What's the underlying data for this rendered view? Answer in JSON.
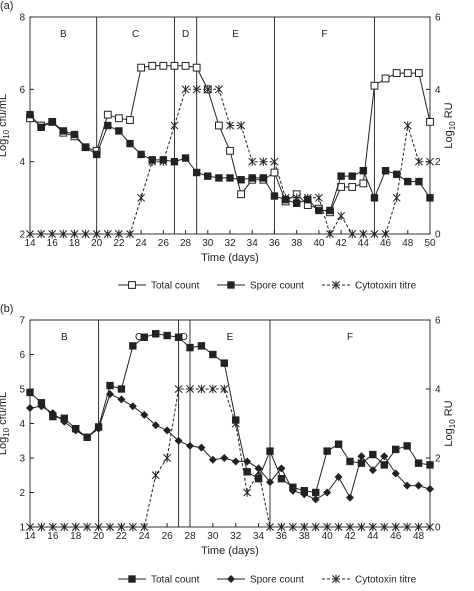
{
  "chart_data": [
    {
      "type": "line",
      "panel_label": "(a)",
      "xlabel": "Time (days)",
      "ylabel": "Log10 cfu/mL",
      "ylabel_main": "Log",
      "ylabel_sub": "10",
      "ylabel_rest": " cfu/mL",
      "y2label": "Log10 RU",
      "y2label_main": "Log",
      "y2label_sub": "10",
      "y2label_rest": " RU",
      "xlim": [
        14,
        50
      ],
      "ylim": [
        2,
        8
      ],
      "y2lim": [
        0,
        6
      ],
      "xticks": [
        14,
        16,
        18,
        20,
        22,
        24,
        26,
        28,
        30,
        32,
        34,
        36,
        38,
        40,
        42,
        44,
        46,
        48,
        50
      ],
      "yticks": [
        2,
        4,
        6,
        8
      ],
      "y2ticks": [
        0,
        2,
        4,
        6
      ],
      "phase_lines": [
        20,
        27,
        29,
        36,
        45
      ],
      "phases": [
        {
          "label": "B",
          "x": 17
        },
        {
          "label": "C",
          "x": 23.5
        },
        {
          "label": "D",
          "x": 28
        },
        {
          "label": "E",
          "x": 32.5
        },
        {
          "label": "F",
          "x": 40.5
        }
      ],
      "series": [
        {
          "name": "Total count",
          "marker": "open-square",
          "line": "solid",
          "axis": "left",
          "x": [
            14,
            15,
            16,
            17,
            18,
            19,
            20,
            21,
            22,
            23,
            24,
            25,
            26,
            27,
            28,
            29,
            30,
            31,
            32,
            33,
            34,
            35,
            36,
            37,
            38,
            39,
            40,
            41,
            42,
            43,
            44,
            45,
            46,
            47,
            48,
            49,
            50
          ],
          "y": [
            5.2,
            5.0,
            5.1,
            4.8,
            4.7,
            4.4,
            4.3,
            5.3,
            5.2,
            5.15,
            6.6,
            6.65,
            6.65,
            6.65,
            6.65,
            6.6,
            6.0,
            5.0,
            4.3,
            3.1,
            3.5,
            3.5,
            3.7,
            2.9,
            3.1,
            2.8,
            2.7,
            2.6,
            3.3,
            3.3,
            3.4,
            6.1,
            6.3,
            6.45,
            6.45,
            6.45,
            5.1
          ]
        },
        {
          "name": "Spore count",
          "marker": "filled-square",
          "line": "solid",
          "axis": "left",
          "x": [
            14,
            15,
            16,
            17,
            18,
            19,
            20,
            21,
            22,
            23,
            24,
            25,
            26,
            27,
            28,
            29,
            30,
            31,
            32,
            33,
            34,
            35,
            36,
            37,
            38,
            39,
            40,
            41,
            42,
            43,
            44,
            45,
            46,
            47,
            48,
            49,
            50
          ],
          "y": [
            5.3,
            4.95,
            5.1,
            4.85,
            4.75,
            4.4,
            4.2,
            5.0,
            4.85,
            4.5,
            4.2,
            4.05,
            4.05,
            4.0,
            4.1,
            3.7,
            3.6,
            3.55,
            3.55,
            3.5,
            3.55,
            3.55,
            3.05,
            2.95,
            2.85,
            2.95,
            2.65,
            2.65,
            3.6,
            3.6,
            3.75,
            3.0,
            3.75,
            3.65,
            3.45,
            3.45,
            3.0
          ]
        },
        {
          "name": "Cytotoxin titre",
          "marker": "asterisk",
          "line": "dashed",
          "axis": "right",
          "x": [
            14,
            15,
            16,
            17,
            18,
            19,
            20,
            21,
            22,
            23,
            24,
            25,
            26,
            27,
            28,
            29,
            30,
            31,
            32,
            33,
            34,
            35,
            36,
            37,
            38,
            39,
            40,
            41,
            42,
            43,
            44,
            45,
            46,
            47,
            48,
            49,
            50
          ],
          "y": [
            0,
            0,
            0,
            0,
            0,
            0,
            0,
            0,
            0,
            0,
            1,
            2,
            2,
            3,
            4,
            4,
            4,
            4,
            3,
            3,
            2,
            2,
            2,
            1,
            1,
            1,
            1,
            0,
            0.5,
            0,
            0,
            0,
            0,
            1,
            3,
            2,
            2
          ]
        }
      ]
    },
    {
      "type": "line",
      "panel_label": "(b)",
      "xlabel": "Time (days)",
      "ylabel": "Log10 cfu/mL",
      "ylabel_main": "Log",
      "ylabel_sub": "10",
      "ylabel_rest": " cfu/mL",
      "y2label": "Log10 RU",
      "y2label_main": "Log",
      "y2label_sub": "10",
      "y2label_rest": " RU",
      "xlim": [
        14,
        49
      ],
      "ylim": [
        1,
        7
      ],
      "y2lim": [
        0,
        6
      ],
      "xticks": [
        14,
        16,
        18,
        20,
        22,
        24,
        26,
        28,
        30,
        32,
        34,
        36,
        38,
        40,
        42,
        44,
        46,
        48
      ],
      "yticks": [
        1,
        2,
        3,
        4,
        5,
        6,
        7
      ],
      "y2ticks": [
        0,
        2,
        4,
        6
      ],
      "phase_lines": [
        20,
        27,
        28,
        35
      ],
      "phases": [
        {
          "label": "B",
          "x": 17
        },
        {
          "label": "C",
          "x": 23.5
        },
        {
          "label": "D",
          "x": 27.5
        },
        {
          "label": "E",
          "x": 31.5
        },
        {
          "label": "F",
          "x": 42
        }
      ],
      "series": [
        {
          "name": "Total count",
          "marker": "filled-square",
          "line": "solid",
          "axis": "left",
          "x": [
            14,
            15,
            16,
            17,
            18,
            19,
            20,
            21,
            22,
            23,
            24,
            25,
            26,
            27,
            28,
            29,
            30,
            31,
            32,
            33,
            34,
            35,
            36,
            37,
            38,
            39,
            40,
            41,
            42,
            43,
            44,
            45,
            46,
            47,
            48,
            49
          ],
          "y": [
            4.9,
            4.6,
            4.2,
            4.15,
            3.85,
            3.6,
            3.9,
            5.1,
            5.0,
            6.25,
            6.5,
            6.6,
            6.55,
            6.5,
            6.2,
            6.25,
            6.0,
            5.75,
            4.1,
            2.6,
            2.4,
            3.2,
            2.4,
            2.15,
            2.05,
            2.0,
            3.2,
            3.4,
            2.9,
            2.85,
            3.1,
            2.8,
            3.25,
            3.35,
            2.85,
            2.8
          ]
        },
        {
          "name": "Spore count",
          "marker": "filled-diamond",
          "line": "solid",
          "axis": "left",
          "x": [
            14,
            15,
            16,
            17,
            18,
            19,
            20,
            21,
            22,
            23,
            24,
            25,
            26,
            27,
            28,
            29,
            30,
            31,
            32,
            33,
            34,
            35,
            36,
            37,
            38,
            39,
            40,
            41,
            42,
            43,
            44,
            45,
            46,
            47,
            48,
            49
          ],
          "y": [
            4.45,
            4.5,
            4.3,
            4.05,
            3.8,
            3.6,
            3.85,
            4.85,
            4.7,
            4.5,
            4.25,
            3.95,
            3.8,
            3.5,
            3.35,
            3.3,
            2.95,
            3.0,
            2.9,
            2.9,
            2.7,
            2.3,
            2.7,
            2.05,
            1.95,
            1.8,
            2.0,
            2.45,
            1.85,
            3.05,
            2.65,
            3.05,
            2.55,
            2.2,
            2.2,
            2.1
          ]
        },
        {
          "name": "Cytotoxin titre",
          "marker": "asterisk",
          "line": "dashed",
          "axis": "right",
          "x": [
            14,
            15,
            16,
            17,
            18,
            19,
            20,
            21,
            22,
            23,
            24,
            25,
            26,
            27,
            28,
            29,
            30,
            31,
            32,
            33,
            34,
            35,
            36,
            37,
            38,
            39,
            40,
            41,
            42,
            43,
            44,
            45,
            46,
            47,
            48,
            49
          ],
          "y": [
            0,
            0,
            0,
            0,
            0,
            0,
            0,
            0,
            0,
            0,
            0,
            1.5,
            2,
            4,
            4,
            4,
            4,
            4,
            3,
            1,
            1.6,
            0,
            0,
            0,
            0,
            0,
            0,
            0,
            0,
            0,
            0,
            0,
            0,
            0,
            0,
            0
          ]
        }
      ]
    }
  ],
  "legend": {
    "a": [
      {
        "label": "Total count",
        "marker": "open-square",
        "line": "solid"
      },
      {
        "label": "Spore count",
        "marker": "filled-square",
        "line": "solid"
      },
      {
        "label": "Cytotoxin titre",
        "marker": "asterisk",
        "line": "dashed"
      }
    ],
    "b": [
      {
        "label": "Total count",
        "marker": "filled-square",
        "line": "solid"
      },
      {
        "label": "Spore count",
        "marker": "filled-diamond",
        "line": "solid"
      },
      {
        "label": "Cytotoxin titre",
        "marker": "asterisk",
        "line": "dashed"
      }
    ]
  },
  "colors": {
    "ink": "#222222",
    "frame": "#333333",
    "background": "#ffffff"
  }
}
